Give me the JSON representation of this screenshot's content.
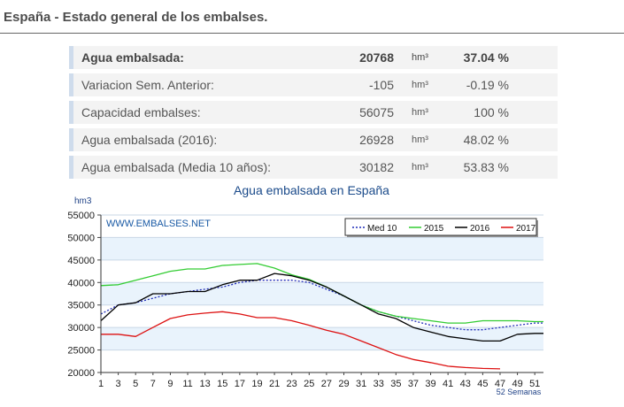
{
  "page": {
    "title": "España - Estado general de los embalses."
  },
  "stats": [
    {
      "label": "Agua embalsada:",
      "value": "20768",
      "unit": "hm³",
      "pct": "37.04 %",
      "bold": true
    },
    {
      "label": "Variacion Sem. Anterior:",
      "value": "-105",
      "unit": "hm³",
      "pct": "-0.19 %"
    },
    {
      "label": "Capacidad embalses:",
      "value": "56075",
      "unit": "hm³",
      "pct": "100 %"
    },
    {
      "label": "Agua embalsada (2016):",
      "value": "26928",
      "unit": "hm³",
      "pct": "48.02 %"
    },
    {
      "label": "Agua embalsada (Media 10 años):",
      "value": "30182",
      "unit": "hm³",
      "pct": "53.83 %"
    }
  ],
  "chart_data": {
    "type": "line",
    "title": "Agua embalsada en España",
    "ylabel": "hm3",
    "xlabel": "52 Semanas",
    "watermark": "WWW.EMBALSES.NET",
    "ylim": [
      20000,
      55000
    ],
    "xlim": [
      1,
      52
    ],
    "yticks": [
      20000,
      25000,
      30000,
      35000,
      40000,
      45000,
      50000,
      55000
    ],
    "xticks": [
      1,
      3,
      5,
      7,
      9,
      11,
      13,
      15,
      17,
      19,
      21,
      23,
      25,
      27,
      29,
      31,
      33,
      35,
      37,
      39,
      41,
      43,
      45,
      47,
      49,
      51
    ],
    "grid": true,
    "legend_position": "top-right",
    "series": [
      {
        "name": "Med 10",
        "color": "#1f2bb8",
        "dashed": true,
        "x": [
          1,
          3,
          5,
          7,
          9,
          11,
          13,
          15,
          17,
          19,
          21,
          23,
          25,
          27,
          29,
          31,
          33,
          35,
          37,
          39,
          41,
          43,
          45,
          47,
          49,
          51,
          52
        ],
        "y": [
          33000,
          35000,
          35500,
          36500,
          37500,
          38000,
          38500,
          39000,
          40000,
          40500,
          40500,
          40500,
          40000,
          38500,
          37000,
          35000,
          33500,
          32500,
          31500,
          30500,
          30000,
          29500,
          29500,
          30000,
          30500,
          31000,
          31000
        ]
      },
      {
        "name": "2015",
        "color": "#33cc33",
        "x": [
          1,
          3,
          5,
          7,
          9,
          11,
          13,
          15,
          17,
          19,
          21,
          23,
          25,
          27,
          29,
          31,
          33,
          35,
          37,
          39,
          41,
          43,
          45,
          47,
          49,
          51,
          52
        ],
        "y": [
          39300,
          39500,
          40500,
          41500,
          42500,
          43000,
          43000,
          43800,
          44000,
          44200,
          43200,
          41700,
          40700,
          39000,
          37000,
          35000,
          33500,
          32500,
          32000,
          31500,
          31000,
          31000,
          31500,
          31500,
          31500,
          31300,
          31300
        ]
      },
      {
        "name": "2016",
        "color": "#000000",
        "x": [
          1,
          3,
          5,
          7,
          9,
          11,
          13,
          15,
          17,
          19,
          21,
          23,
          25,
          27,
          29,
          31,
          33,
          35,
          37,
          39,
          41,
          43,
          45,
          47,
          49,
          51,
          52
        ],
        "y": [
          31500,
          35000,
          35500,
          37500,
          37500,
          38000,
          38000,
          39500,
          40500,
          40500,
          42000,
          41500,
          40500,
          39000,
          37000,
          35000,
          33000,
          32000,
          30000,
          29000,
          28000,
          27500,
          27000,
          27000,
          28500,
          28700,
          28700
        ]
      },
      {
        "name": "2017",
        "color": "#dd1111",
        "x": [
          1,
          3,
          5,
          7,
          9,
          11,
          13,
          15,
          17,
          19,
          21,
          23,
          25,
          27,
          29,
          31,
          33,
          35,
          37,
          39,
          41,
          43,
          45,
          47
        ],
        "y": [
          28500,
          28500,
          28000,
          30000,
          32000,
          32800,
          33200,
          33500,
          33000,
          32200,
          32200,
          31500,
          30500,
          29400,
          28500,
          27000,
          25500,
          24000,
          22900,
          22200,
          21400,
          21100,
          20900,
          20800
        ]
      }
    ]
  }
}
